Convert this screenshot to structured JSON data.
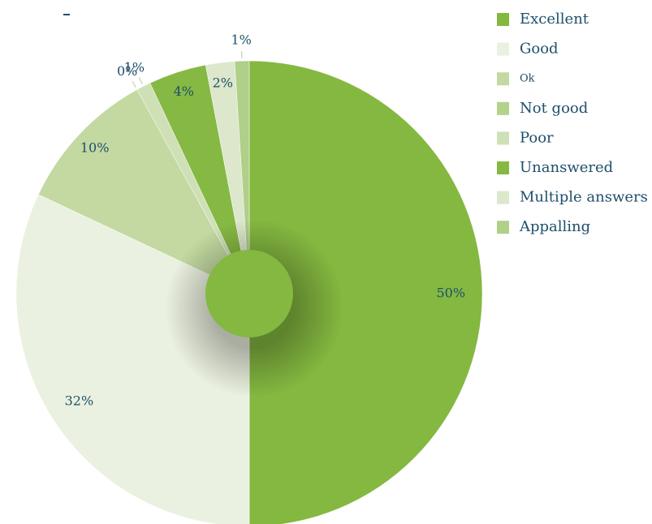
{
  "chart_data": {
    "type": "pie",
    "categories": [
      "Excellent",
      "Good",
      "Ok",
      "Not good",
      "Poor",
      "Unanswered",
      "Multiple answers",
      "Appalling"
    ],
    "values": [
      50,
      32,
      10,
      0,
      1,
      4,
      2,
      1
    ],
    "value_labels": [
      "50%",
      "32%",
      "10%",
      "0%",
      "1%",
      "4%",
      "2%",
      "1%"
    ],
    "colors": [
      "#84b840",
      "#ebf1e0",
      "#c3d9a1",
      "#b4d28b",
      "#cfe0b6",
      "#86b943",
      "#dce7cb",
      "#b0cf88"
    ],
    "legend": "right"
  }
}
